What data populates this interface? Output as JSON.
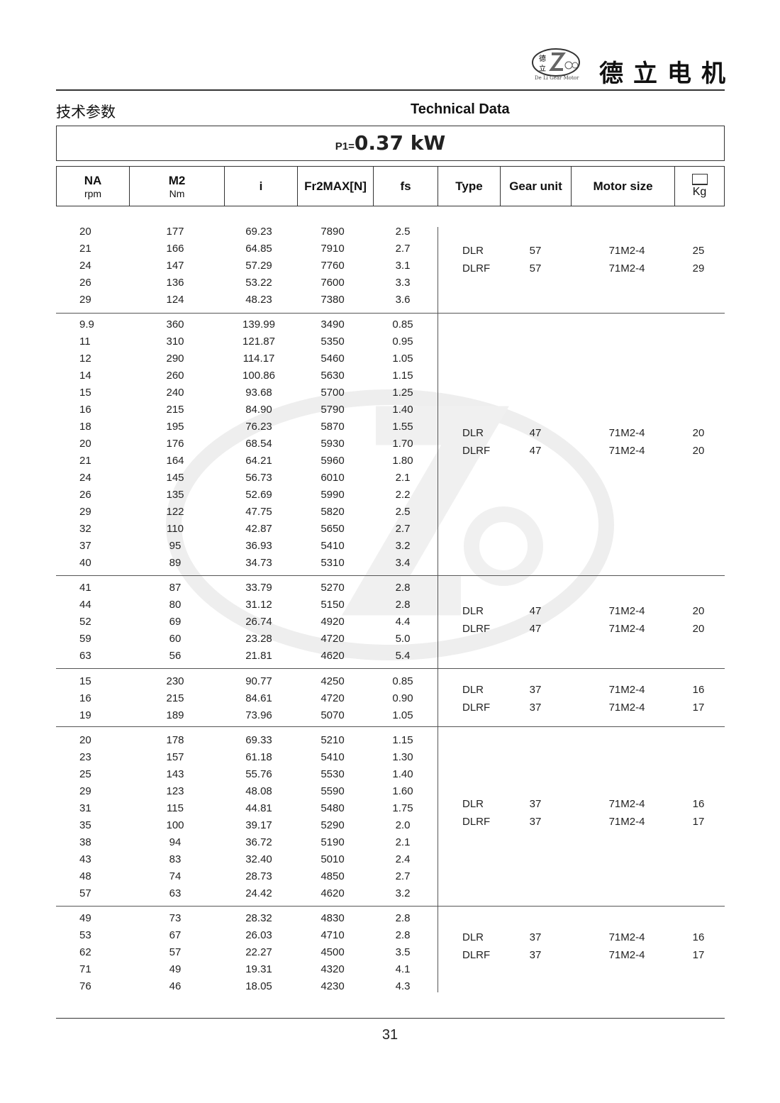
{
  "header": {
    "logo_text": "德立电机",
    "logo_subtitle": "De Li Gear Motor",
    "title_cn": "技术参数",
    "title_en": "Technical Data"
  },
  "power": {
    "label": "P1=",
    "value": "0.37 kW"
  },
  "columns": {
    "na": "NA",
    "na_unit": "rpm",
    "m2": "M2",
    "m2_unit": "Nm",
    "i": "i",
    "fr": "Fr2MAX[N]",
    "fs": "fs",
    "type": "Type",
    "gear_unit": "Gear unit",
    "motor_size": "Motor size",
    "weight": "Kg"
  },
  "groups": [
    {
      "rows": [
        [
          "20",
          "177",
          "69.23",
          "7890",
          "2.5"
        ],
        [
          "21",
          "166",
          "64.85",
          "7910",
          "2.7"
        ],
        [
          "24",
          "147",
          "57.29",
          "7760",
          "3.1"
        ],
        [
          "26",
          "136",
          "53.22",
          "7600",
          "3.3"
        ],
        [
          "29",
          "124",
          "48.23",
          "7380",
          "3.6"
        ]
      ],
      "types": [
        [
          "DLR",
          "57",
          "71M2-4",
          "25"
        ],
        [
          "DLRF",
          "57",
          "71M2-4",
          "29"
        ]
      ]
    },
    {
      "rows": [
        [
          "9.9",
          "360",
          "139.99",
          "3490",
          "0.85"
        ],
        [
          "11",
          "310",
          "121.87",
          "5350",
          "0.95"
        ],
        [
          "12",
          "290",
          "114.17",
          "5460",
          "1.05"
        ],
        [
          "14",
          "260",
          "100.86",
          "5630",
          "1.15"
        ],
        [
          "15",
          "240",
          "93.68",
          "5700",
          "1.25"
        ],
        [
          "16",
          "215",
          "84.90",
          "5790",
          "1.40"
        ],
        [
          "18",
          "195",
          "76.23",
          "5870",
          "1.55"
        ],
        [
          "20",
          "176",
          "68.54",
          "5930",
          "1.70"
        ],
        [
          "21",
          "164",
          "64.21",
          "5960",
          "1.80"
        ],
        [
          "24",
          "145",
          "56.73",
          "6010",
          "2.1"
        ],
        [
          "26",
          "135",
          "52.69",
          "5990",
          "2.2"
        ],
        [
          "29",
          "122",
          "47.75",
          "5820",
          "2.5"
        ],
        [
          "32",
          "110",
          "42.87",
          "5650",
          "2.7"
        ],
        [
          "37",
          "95",
          "36.93",
          "5410",
          "3.2"
        ],
        [
          "40",
          "89",
          "34.73",
          "5310",
          "3.4"
        ]
      ],
      "types": [
        [
          "DLR",
          "47",
          "71M2-4",
          "20"
        ],
        [
          "DLRF",
          "47",
          "71M2-4",
          "20"
        ]
      ]
    },
    {
      "rows": [
        [
          "41",
          "87",
          "33.79",
          "5270",
          "2.8"
        ],
        [
          "44",
          "80",
          "31.12",
          "5150",
          "2.8"
        ],
        [
          "52",
          "69",
          "26.74",
          "4920",
          "4.4"
        ],
        [
          "59",
          "60",
          "23.28",
          "4720",
          "5.0"
        ],
        [
          "63",
          "56",
          "21.81",
          "4620",
          "5.4"
        ]
      ],
      "types": [
        [
          "DLR",
          "47",
          "71M2-4",
          "20"
        ],
        [
          "DLRF",
          "47",
          "71M2-4",
          "20"
        ]
      ]
    },
    {
      "rows": [
        [
          "15",
          "230",
          "90.77",
          "4250",
          "0.85"
        ],
        [
          "16",
          "215",
          "84.61",
          "4720",
          "0.90"
        ],
        [
          "19",
          "189",
          "73.96",
          "5070",
          "1.05"
        ]
      ],
      "types": [
        [
          "DLR",
          "37",
          "71M2-4",
          "16"
        ],
        [
          "DLRF",
          "37",
          "71M2-4",
          "17"
        ]
      ]
    },
    {
      "rows": [
        [
          "20",
          "178",
          "69.33",
          "5210",
          "1.15"
        ],
        [
          "23",
          "157",
          "61.18",
          "5410",
          "1.30"
        ],
        [
          "25",
          "143",
          "55.76",
          "5530",
          "1.40"
        ],
        [
          "29",
          "123",
          "48.08",
          "5590",
          "1.60"
        ],
        [
          "31",
          "115",
          "44.81",
          "5480",
          "1.75"
        ],
        [
          "35",
          "100",
          "39.17",
          "5290",
          "2.0"
        ],
        [
          "38",
          "94",
          "36.72",
          "5190",
          "2.1"
        ],
        [
          "43",
          "83",
          "32.40",
          "5010",
          "2.4"
        ],
        [
          "48",
          "74",
          "28.73",
          "4850",
          "2.7"
        ],
        [
          "57",
          "63",
          "24.42",
          "4620",
          "3.2"
        ]
      ],
      "types": [
        [
          "DLR",
          "37",
          "71M2-4",
          "16"
        ],
        [
          "DLRF",
          "37",
          "71M2-4",
          "17"
        ]
      ]
    },
    {
      "rows": [
        [
          "49",
          "73",
          "28.32",
          "4830",
          "2.8"
        ],
        [
          "53",
          "67",
          "26.03",
          "4710",
          "2.8"
        ],
        [
          "62",
          "57",
          "22.27",
          "4500",
          "3.5"
        ],
        [
          "71",
          "49",
          "19.31",
          "4320",
          "4.1"
        ],
        [
          "76",
          "46",
          "18.05",
          "4230",
          "4.3"
        ]
      ],
      "types": [
        [
          "DLR",
          "37",
          "71M2-4",
          "16"
        ],
        [
          "DLRF",
          "37",
          "71M2-4",
          "17"
        ]
      ]
    }
  ],
  "footer": {
    "page_number": "31"
  }
}
